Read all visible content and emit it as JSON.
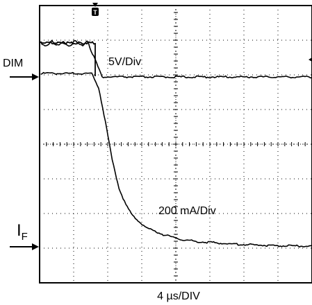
{
  "chart_data": {
    "type": "line",
    "channels": [
      {
        "marker": "DIM",
        "scale_label": "5V/Div",
        "color": "#000000"
      },
      {
        "marker": "I",
        "marker_sub": "F",
        "scale_label": "200 mA/Div",
        "color": "#000000"
      }
    ],
    "trigger_marker": "T",
    "x_scale_label": "4 µs/DIV",
    "grid": "dotted",
    "major_divisions_x": 8,
    "major_divisions_y": 8,
    "series": [
      {
        "x": [
          -1.6,
          -0.2,
          0.0,
          0.2,
          0.4,
          8.0
        ],
        "y": [
          0.95,
          0.95,
          0.5,
          0.0,
          0.0,
          0.0
        ]
      },
      {
        "x": [
          -1.6,
          -0.1,
          0.1,
          0.3,
          0.5,
          0.7,
          0.9,
          1.1,
          1.5,
          2.0,
          2.5,
          3.0,
          4.0,
          5.0,
          6.0,
          8.0
        ],
        "y": [
          5.0,
          5.0,
          4.6,
          3.6,
          2.5,
          1.7,
          1.2,
          0.9,
          0.55,
          0.35,
          0.22,
          0.15,
          0.08,
          0.04,
          0.02,
          0.0
        ]
      }
    ]
  }
}
